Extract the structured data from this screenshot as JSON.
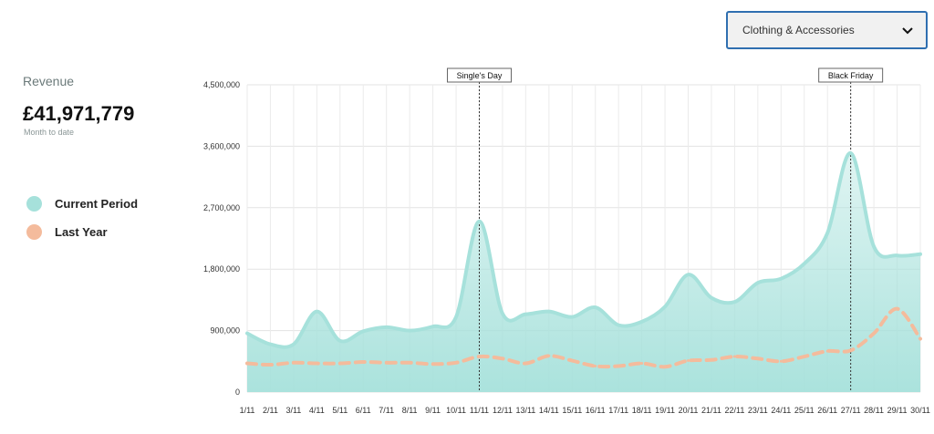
{
  "category_select": {
    "value": "Clothing & Accessories"
  },
  "summary": {
    "label": "Revenue",
    "value": "£41,971,779",
    "sublabel": "Month to date"
  },
  "legend": [
    {
      "name": "Current Period",
      "color": "#a6e1db"
    },
    {
      "name": "Last Year",
      "color": "#f4bb9c"
    }
  ],
  "chart_data": {
    "type": "area",
    "x": [
      "1/11",
      "2/11",
      "3/11",
      "4/11",
      "5/11",
      "6/11",
      "7/11",
      "8/11",
      "9/11",
      "10/11",
      "11/11",
      "12/11",
      "13/11",
      "14/11",
      "15/11",
      "16/11",
      "17/11",
      "18/11",
      "19/11",
      "20/11",
      "21/11",
      "22/11",
      "23/11",
      "24/11",
      "25/11",
      "26/11",
      "27/11",
      "28/11",
      "29/11",
      "30/11"
    ],
    "series": [
      {
        "name": "Current Period",
        "style": "area",
        "values": [
          860000,
          700000,
          700000,
          1180000,
          750000,
          890000,
          950000,
          900000,
          960000,
          1100000,
          2500000,
          1150000,
          1140000,
          1180000,
          1100000,
          1240000,
          980000,
          1030000,
          1250000,
          1720000,
          1380000,
          1320000,
          1600000,
          1660000,
          1880000,
          2330000,
          3500000,
          2130000,
          2000000,
          2020000
        ]
      },
      {
        "name": "Last Year",
        "style": "dashed-line",
        "values": [
          420000,
          400000,
          430000,
          420000,
          420000,
          440000,
          430000,
          430000,
          410000,
          430000,
          520000,
          490000,
          420000,
          530000,
          460000,
          380000,
          380000,
          420000,
          370000,
          460000,
          470000,
          520000,
          490000,
          450000,
          520000,
          600000,
          610000,
          860000,
          1220000,
          780000
        ]
      }
    ],
    "ylim": [
      0,
      4500000
    ],
    "yticks": [
      0,
      900000,
      1800000,
      2700000,
      3600000,
      4500000
    ],
    "ytick_labels": [
      "0",
      "900,000",
      "1,800,000",
      "2,700,000",
      "3,600,000",
      "4,500,000"
    ],
    "grid": true,
    "legend_position": "left",
    "annotations": [
      {
        "x": "11/11",
        "label": "Single's Day"
      },
      {
        "x": "27/11",
        "label": "Black Friday"
      }
    ]
  }
}
